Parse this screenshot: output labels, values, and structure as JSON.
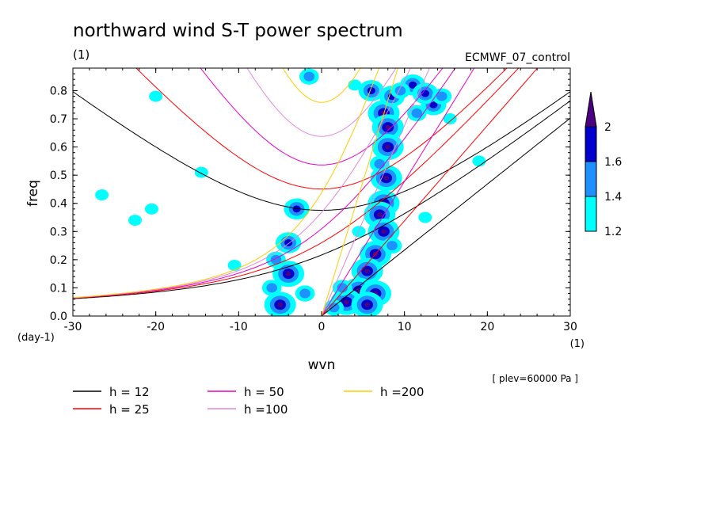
{
  "chart_data": {
    "type": "contour",
    "title": "northward wind S-T power spectrum",
    "subtitle_left": "(1)",
    "subtitle_right": "ECMWF_07_control",
    "xlabel": "wvn",
    "ylabel": "freq",
    "x_unit": "(1)",
    "y_unit": "(day-1)",
    "xlim": [
      -30,
      30
    ],
    "ylim": [
      0,
      0.88
    ],
    "x_ticks": [
      -30,
      -20,
      -10,
      0,
      10,
      20,
      30
    ],
    "x_tick_labels": [
      "-30",
      "-20",
      "-10",
      "0",
      "10",
      "20",
      "30"
    ],
    "y_ticks": [
      0,
      0.1,
      0.2,
      0.3,
      0.4,
      0.5,
      0.6,
      0.7,
      0.8
    ],
    "y_tick_labels": [
      "0.0",
      "0.1",
      "0.2",
      "0.3",
      "0.4",
      "0.5",
      "0.6",
      "0.7",
      "0.8"
    ],
    "annotation": "[ plev=60000 Pa ]",
    "colorbar": {
      "levels": [
        1.2,
        1.4,
        1.6,
        2
      ],
      "labels": [
        "1.2",
        "1.4",
        "1.6",
        "2"
      ],
      "colors": [
        "#00ffff",
        "#1e90ff",
        "#0000cd",
        "#4b0082"
      ]
    },
    "dispersion_curves": [
      {
        "name": "h = 12",
        "h": 12,
        "color": "#000000"
      },
      {
        "name": "h = 25",
        "h": 25,
        "color": "#ff0000"
      },
      {
        "name": "h = 50",
        "h": 50,
        "color": "#e600c8"
      },
      {
        "name": "h =100",
        "h": 100,
        "color": "#dd88dd"
      },
      {
        "name": "h =200",
        "h": 200,
        "color": "#ffcc00"
      }
    ],
    "power_blobs": [
      {
        "k": 7.5,
        "f": 0.72,
        "level": 3
      },
      {
        "k": 8.0,
        "f": 0.67,
        "level": 3
      },
      {
        "k": 8.0,
        "f": 0.6,
        "level": 3
      },
      {
        "k": 7.8,
        "f": 0.49,
        "level": 3
      },
      {
        "k": 7.5,
        "f": 0.4,
        "level": 3
      },
      {
        "k": 7.0,
        "f": 0.36,
        "level": 3
      },
      {
        "k": 7.5,
        "f": 0.3,
        "level": 3
      },
      {
        "k": 6.5,
        "f": 0.22,
        "level": 3
      },
      {
        "k": 5.5,
        "f": 0.16,
        "level": 3
      },
      {
        "k": 4.5,
        "f": 0.09,
        "level": 3
      },
      {
        "k": 6.5,
        "f": 0.08,
        "level": 3
      },
      {
        "k": 3.0,
        "f": 0.05,
        "level": 3
      },
      {
        "k": 5.5,
        "f": 0.04,
        "level": 3
      },
      {
        "k": -4.0,
        "f": 0.15,
        "level": 3
      },
      {
        "k": -5.0,
        "f": 0.04,
        "level": 3
      },
      {
        "k": -3.0,
        "f": 0.38,
        "level": 2
      },
      {
        "k": -4.0,
        "f": 0.26,
        "level": 2
      },
      {
        "k": 11.0,
        "f": 0.82,
        "level": 2
      },
      {
        "k": 13.5,
        "f": 0.75,
        "level": 2
      },
      {
        "k": 12.5,
        "f": 0.79,
        "level": 2
      },
      {
        "k": 6.0,
        "f": 0.8,
        "level": 2
      },
      {
        "k": 8.5,
        "f": 0.78,
        "level": 2
      },
      {
        "k": 9.5,
        "f": 0.8,
        "level": 1
      },
      {
        "k": 14.5,
        "f": 0.78,
        "level": 1
      },
      {
        "k": 11.5,
        "f": 0.72,
        "level": 1
      },
      {
        "k": 7.0,
        "f": 0.54,
        "level": 1
      },
      {
        "k": 8.5,
        "f": 0.25,
        "level": 1
      },
      {
        "k": 2.5,
        "f": 0.1,
        "level": 1
      },
      {
        "k": -5.5,
        "f": 0.2,
        "level": 1
      },
      {
        "k": 1.5,
        "f": 0.03,
        "level": 1
      },
      {
        "k": -1.5,
        "f": 0.85,
        "level": 1
      },
      {
        "k": -2.0,
        "f": 0.08,
        "level": 1
      },
      {
        "k": -6.0,
        "f": 0.1,
        "level": 1
      },
      {
        "k": -20.5,
        "f": 0.38,
        "level": 0
      },
      {
        "k": -26.5,
        "f": 0.43,
        "level": 0
      },
      {
        "k": -22.5,
        "f": 0.34,
        "level": 0
      },
      {
        "k": -14.5,
        "f": 0.51,
        "level": 0
      },
      {
        "k": -20.0,
        "f": 0.78,
        "level": 0
      },
      {
        "k": 15.5,
        "f": 0.7,
        "level": 0
      },
      {
        "k": 19.0,
        "f": 0.55,
        "level": 0
      },
      {
        "k": 12.5,
        "f": 0.35,
        "level": 0
      },
      {
        "k": 4.5,
        "f": 0.3,
        "level": 0
      },
      {
        "k": 4.0,
        "f": 0.82,
        "level": 0
      },
      {
        "k": -10.5,
        "f": 0.18,
        "level": 0
      }
    ]
  }
}
